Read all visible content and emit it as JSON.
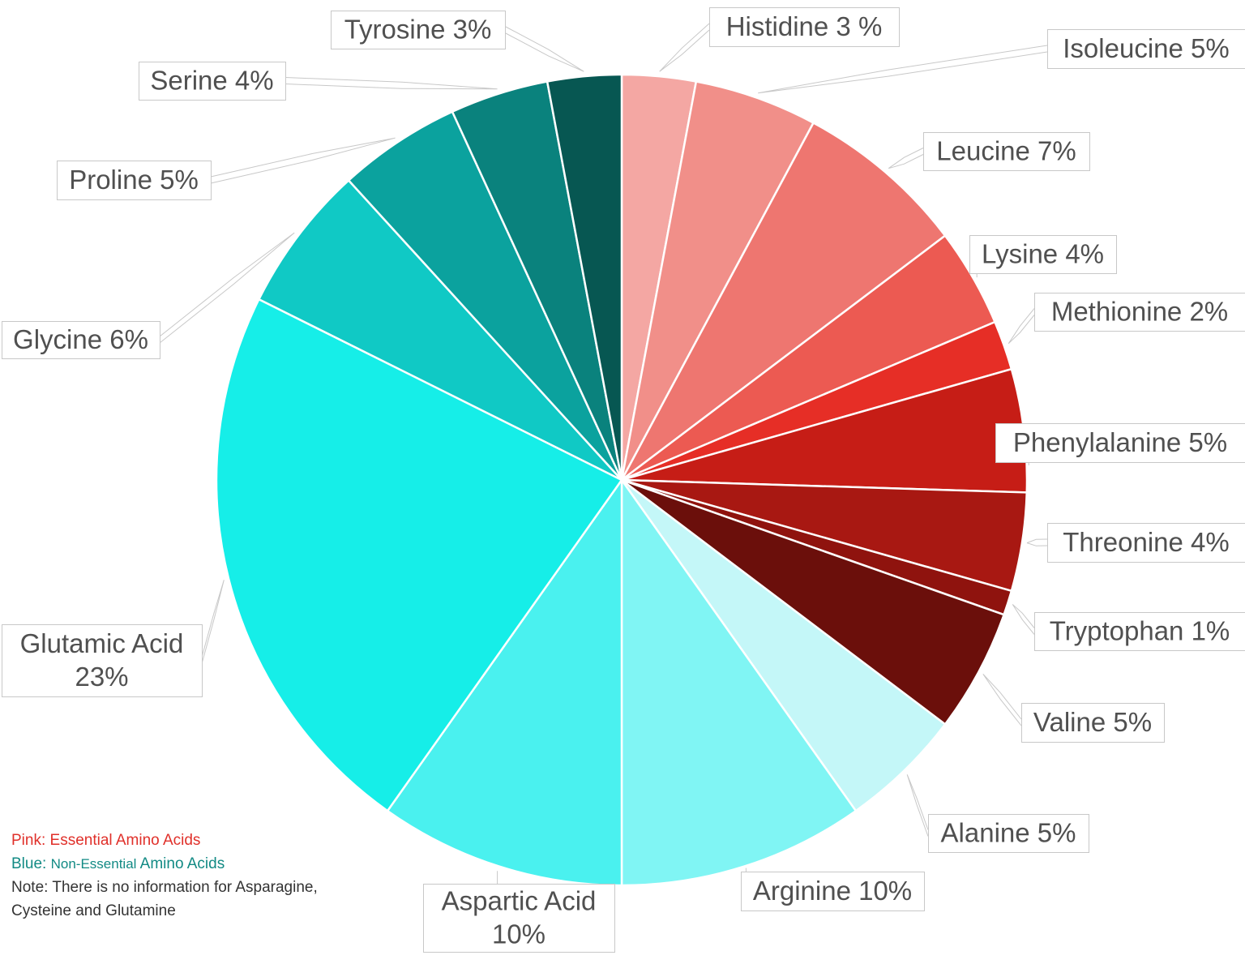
{
  "chart_data": {
    "type": "pie",
    "start_angle_deg": 0,
    "direction": "clockwise",
    "slices": [
      {
        "name": "Histidine",
        "value": 3,
        "label": "Histidine 3 %",
        "color": "#f4a7a3"
      },
      {
        "name": "Isoleucine",
        "value": 5,
        "label": "Isoleucine 5%",
        "color": "#f18f89"
      },
      {
        "name": "Leucine",
        "value": 7,
        "label": "Leucine 7%",
        "color": "#ee7670"
      },
      {
        "name": "Lysine",
        "value": 4,
        "label": "Lysine 4%",
        "color": "#ec5a52"
      },
      {
        "name": "Methionine",
        "value": 2,
        "label": "Methionine 2%",
        "color": "#e62e26"
      },
      {
        "name": "Phenylalanine",
        "value": 5,
        "label": "Phenylalanine 5%",
        "color": "#c61d16"
      },
      {
        "name": "Threonine",
        "value": 4,
        "label": "Threonine 4%",
        "color": "#a81812"
      },
      {
        "name": "Tryptophan",
        "value": 1,
        "label": "Tryptophan 1%",
        "color": "#8f130e"
      },
      {
        "name": "Valine",
        "value": 5,
        "label": "Valine 5%",
        "color": "#6b0f0b"
      },
      {
        "name": "Alanine",
        "value": 5,
        "label": "Alanine 5%",
        "color": "#c4f7f8"
      },
      {
        "name": "Arginine",
        "value": 10,
        "label": "Arginine 10%",
        "color": "#80f5f4"
      },
      {
        "name": "Aspartic Acid",
        "value": 10,
        "label_lines": [
          "Aspartic Acid",
          "10%"
        ],
        "color": "#4af1ef"
      },
      {
        "name": "Glutamic Acid",
        "value": 23,
        "label_lines": [
          "Glutamic Acid",
          "23%"
        ],
        "color": "#16eee8"
      },
      {
        "name": "Glycine",
        "value": 6,
        "label": "Glycine 6%",
        "color": "#10c9c5"
      },
      {
        "name": "Proline",
        "value": 5,
        "label": "Proline 5%",
        "color": "#0ba29e"
      },
      {
        "name": "Serine",
        "value": 4,
        "label": "Serine 4%",
        "color": "#0a827d"
      },
      {
        "name": "Tyrosine",
        "value": 3,
        "label": "Tyrosine 3%",
        "color": "#075752"
      }
    ]
  },
  "notes": {
    "pink_key": "Pink:",
    "pink_text": "Essential Amino Acids",
    "blue_key": "Blue:",
    "blue_text_a": "Non-Essential",
    "blue_text_b": "Amino Acids",
    "note_line1": "Note: There is no information for Asparagine,",
    "note_line2": "Cysteine and Glutamine"
  }
}
